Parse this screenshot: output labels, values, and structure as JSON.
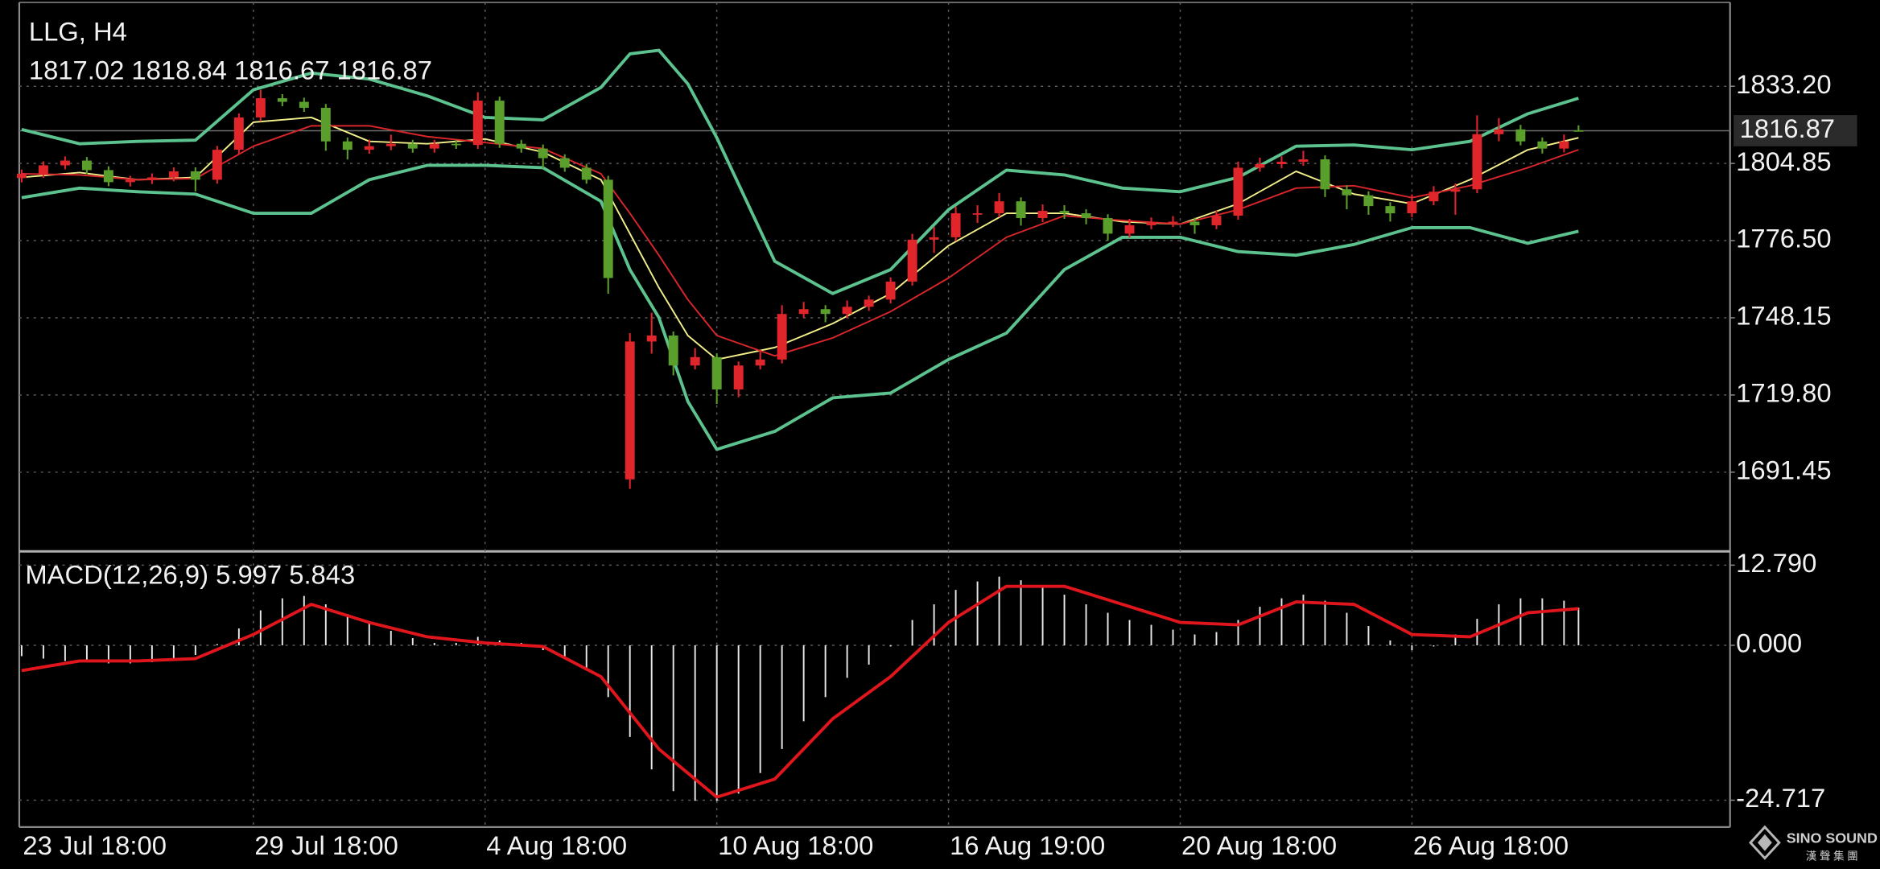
{
  "chart_data": [
    {
      "type": "candlestick",
      "title": "LLG, H4",
      "up_color": "#e0262b",
      "down_color": "#5a9e2c",
      "grid": true,
      "last_price_line": true,
      "xlim": [
        -0.33,
        235.93
      ],
      "ylim": [
        1662.8,
        1864.0
      ],
      "yticks": [
        {
          "value": 1833.2,
          "label": "1833.20"
        },
        1804.85,
        {
          "value": 1776.5,
          "label": "1776.50"
        },
        1748.15,
        {
          "value": 1719.8,
          "label": "1719.80"
        },
        1691.45
      ],
      "xticks": [
        {
          "value": 0,
          "label": "23 Jul 18:00"
        },
        {
          "value": 32,
          "label": "29 Jul 18:00"
        },
        {
          "value": 64,
          "label": "4 Aug 18:00"
        },
        {
          "value": 96,
          "label": "10 Aug 18:00"
        },
        {
          "value": 128,
          "label": "16 Aug 19:00"
        },
        {
          "value": 160,
          "label": "20 Aug 18:00"
        },
        {
          "value": 192,
          "label": "26 Aug 18:00"
        }
      ],
      "x": [
        0,
        3,
        6,
        9,
        12,
        15,
        18,
        21,
        24,
        27,
        30,
        33,
        36,
        39,
        42,
        45,
        48,
        51,
        54,
        57,
        60,
        63,
        66,
        69,
        72,
        75,
        78,
        81,
        84,
        87,
        90,
        93,
        96,
        99,
        102,
        105,
        108,
        111,
        114,
        117,
        120,
        123,
        126,
        129,
        132,
        135,
        138,
        141,
        144,
        147,
        150,
        153,
        156,
        159,
        162,
        165,
        168,
        171,
        174,
        177,
        180,
        183,
        186,
        189,
        192,
        195,
        198,
        201,
        204,
        207,
        210,
        213,
        215
      ],
      "open": [
        1799.5,
        1801.07,
        1804.15,
        1805.91,
        1802.39,
        1797.98,
        1798.86,
        1799.74,
        1801.95,
        1798.86,
        1809.87,
        1821.75,
        1828.8,
        1827.48,
        1825.28,
        1812.95,
        1809.87,
        1811.19,
        1812.07,
        1810.31,
        1812.07,
        1811.63,
        1827.92,
        1812.07,
        1810.31,
        1806.79,
        1803.27,
        1798.86,
        1688.81,
        1739.44,
        1741.64,
        1730.63,
        1733.71,
        1721.83,
        1730.63,
        1732.83,
        1749.56,
        1751.32,
        1749.56,
        1752.2,
        1754.84,
        1761.45,
        1776.85,
        1777.73,
        1786.54,
        1786.54,
        1790.94,
        1784.78,
        1787.42,
        1786.54,
        1784.78,
        1779.06,
        1782.14,
        1783.02,
        1783.46,
        1782.14,
        1785.66,
        1803.27,
        1804.59,
        1805.47,
        1806.35,
        1795.34,
        1793.14,
        1789.18,
        1786.54,
        1790.94,
        1794.46,
        1795.34,
        1815.59,
        1817.35,
        1812.95,
        1810.31,
        1817.02
      ],
      "high": [
        1802.6,
        1805.6,
        1807.4,
        1807.2,
        1803.8,
        1800.3,
        1801.2,
        1803.4,
        1803.4,
        1811.3,
        1823.2,
        1831.9,
        1830.3,
        1829.0,
        1826.7,
        1814.4,
        1813.6,
        1815.4,
        1813.5,
        1813.5,
        1813.5,
        1831.0,
        1829.4,
        1813.5,
        1811.8,
        1808.2,
        1804.7,
        1800.3,
        1742.5,
        1750.0,
        1743.1,
        1737.0,
        1735.1,
        1732.1,
        1736.0,
        1752.8,
        1754.0,
        1752.8,
        1754.5,
        1756.3,
        1763.0,
        1779.0,
        1781.5,
        1789.0,
        1789.5,
        1794.0,
        1792.4,
        1789.8,
        1789.5,
        1788.0,
        1786.2,
        1784.5,
        1785.0,
        1785.5,
        1784.9,
        1787.5,
        1805.5,
        1807.0,
        1807.5,
        1809.5,
        1807.8,
        1796.8,
        1794.6,
        1790.6,
        1793.5,
        1796.5,
        1797.5,
        1822.5,
        1821.5,
        1819.0,
        1814.4,
        1815.5,
        1818.84
      ],
      "low": [
        1797.9,
        1799.6,
        1802.7,
        1800.9,
        1796.5,
        1796.4,
        1797.3,
        1798.3,
        1794.6,
        1797.4,
        1808.4,
        1820.3,
        1825.9,
        1823.8,
        1809.5,
        1806.3,
        1808.4,
        1809.7,
        1808.8,
        1808.8,
        1810.2,
        1810.2,
        1810.6,
        1808.8,
        1803.0,
        1801.8,
        1797.4,
        1757.0,
        1685.29,
        1735.0,
        1727.0,
        1729.2,
        1716.5,
        1719.0,
        1729.2,
        1731.4,
        1748.1,
        1746.5,
        1748.1,
        1750.7,
        1753.4,
        1760.0,
        1772.0,
        1776.3,
        1783.0,
        1785.1,
        1782.0,
        1783.3,
        1784.5,
        1782.5,
        1776.5,
        1777.6,
        1780.7,
        1781.5,
        1779.0,
        1780.7,
        1784.2,
        1801.8,
        1803.1,
        1804.0,
        1792.5,
        1788.0,
        1786.0,
        1783.5,
        1785.1,
        1789.5,
        1786.0,
        1793.9,
        1813.0,
        1811.5,
        1808.5,
        1808.9,
        1816.67
      ],
      "close": [
        1801.07,
        1804.15,
        1805.91,
        1802.39,
        1797.98,
        1798.86,
        1799.74,
        1801.95,
        1798.86,
        1809.87,
        1821.75,
        1828.8,
        1827.48,
        1825.28,
        1812.95,
        1809.87,
        1811.19,
        1812.07,
        1810.31,
        1812.07,
        1811.63,
        1827.92,
        1812.07,
        1810.31,
        1806.79,
        1803.27,
        1798.86,
        1762.77,
        1739.44,
        1741.64,
        1730.63,
        1733.71,
        1721.83,
        1730.63,
        1732.83,
        1749.56,
        1751.32,
        1749.56,
        1752.2,
        1754.84,
        1761.45,
        1776.85,
        1777.73,
        1786.54,
        1786.54,
        1790.94,
        1784.78,
        1787.42,
        1786.54,
        1784.78,
        1779.06,
        1782.14,
        1783.02,
        1783.46,
        1782.14,
        1785.66,
        1803.27,
        1804.59,
        1805.47,
        1806.35,
        1795.34,
        1793.14,
        1789.18,
        1786.54,
        1790.94,
        1794.46,
        1795.34,
        1815.59,
        1817.35,
        1812.95,
        1810.31,
        1812.95,
        1816.87
      ],
      "line_x": [
        0,
        8,
        16,
        24,
        32,
        40,
        48,
        56,
        64,
        72,
        80,
        84,
        88,
        92,
        96,
        104,
        112,
        120,
        128,
        136,
        144,
        152,
        160,
        168,
        176,
        184,
        192,
        200,
        208,
        215
      ],
      "lines": [
        {
          "color": "#5cc28e",
          "width": 2.6,
          "values": [
            1817.35,
            1812.07,
            1812.95,
            1813.39,
            1831.88,
            1838.04,
            1835.84,
            1829.68,
            1821.75,
            1820.87,
            1832.76,
            1845.09,
            1846.41,
            1834.08,
            1814.27,
            1768.93,
            1757.05,
            1765.85,
            1787.86,
            1802.39,
            1800.63,
            1795.78,
            1794.46,
            1799.74,
            1811.19,
            1811.63,
            1809.87,
            1812.95,
            1823.08,
            1828.8
          ]
        },
        {
          "color": "#5cc28e",
          "width": 2.6,
          "values": [
            1792.26,
            1795.78,
            1794.46,
            1793.58,
            1786.54,
            1786.54,
            1798.86,
            1804.15,
            1804.15,
            1803.27,
            1790.94,
            1765.85,
            1748.24,
            1717.43,
            1699.82,
            1706.42,
            1718.75,
            1720.51,
            1732.83,
            1742.52,
            1765.85,
            1777.73,
            1777.73,
            1772.45,
            1771.13,
            1775.09,
            1781.26,
            1781.26,
            1775.53,
            1779.94
          ]
        },
        {
          "color": "#f2ee8a",
          "width": 1.3,
          "values": [
            1799.74,
            1801.51,
            1798.86,
            1799.74,
            1819.99,
            1821.75,
            1812.95,
            1812.07,
            1813.83,
            1808.99,
            1798.86,
            1779.06,
            1759.25,
            1741.64,
            1732.83,
            1737.24,
            1746.04,
            1757.05,
            1774.65,
            1786.54,
            1786.54,
            1783.46,
            1782.58,
            1790.06,
            1801.95,
            1793.58,
            1790.06,
            1798.86,
            1809.87,
            1814.27
          ]
        },
        {
          "color": "#d8262a",
          "width": 1.3,
          "values": [
            1801.07,
            1800.63,
            1798.86,
            1799.3,
            1811.19,
            1818.67,
            1818.67,
            1814.71,
            1812.51,
            1810.31,
            1801.07,
            1786.54,
            1771.13,
            1754.84,
            1741.64,
            1734.15,
            1740.76,
            1750.44,
            1762.77,
            1777.73,
            1785.66,
            1783.9,
            1782.58,
            1787.86,
            1795.78,
            1796.66,
            1792.26,
            1796.66,
            1803.27,
            1809.87
          ]
        }
      ]
    },
    {
      "type": "macd",
      "title": "MACD(12,26,9)",
      "grid": true,
      "ylim": [
        -29.0,
        14.8
      ],
      "yticks": [
        {
          "value": 12.79,
          "label": "12.790"
        },
        {
          "value": 0,
          "label": "0.000"
        },
        -24.717
      ],
      "histogram_color": "#e8e8e8",
      "histogram": [
        -1.73,
        -2.12,
        -2.5,
        -2.69,
        -2.88,
        -2.88,
        -2.69,
        -2.31,
        -1.54,
        0.19,
        2.69,
        5.58,
        7.5,
        7.88,
        6.54,
        5.0,
        3.65,
        2.31,
        1.15,
        0.38,
        0.38,
        1.35,
        0.77,
        0.38,
        -0.77,
        -1.92,
        -4.04,
        -8.27,
        -14.62,
        -19.81,
        -23.27,
        -24.81,
        -24.81,
        -23.65,
        -20.38,
        -16.54,
        -12.12,
        -8.27,
        -5.19,
        -3.08,
        -0.19,
        4.04,
        6.54,
        8.85,
        10.19,
        10.96,
        10.38,
        9.42,
        8.08,
        6.54,
        5.19,
        4.04,
        3.27,
        2.5,
        1.73,
        2.12,
        4.04,
        6.15,
        7.5,
        8.08,
        7.12,
        5.19,
        3.08,
        0.77,
        -0.77,
        -0.19,
        1.73,
        4.23,
        6.54,
        7.5,
        7.5,
        7.12,
        5.997
      ],
      "signal": {
        "color": "#e0161c",
        "x": [
          0,
          8,
          16,
          24,
          32,
          40,
          48,
          56,
          64,
          72,
          80,
          88,
          96,
          104,
          112,
          120,
          128,
          136,
          144,
          152,
          160,
          168,
          176,
          184,
          192,
          200,
          208,
          215
        ],
        "values": [
          -4.04,
          -2.5,
          -2.5,
          -2.12,
          1.73,
          6.54,
          3.65,
          1.35,
          0.38,
          -0.19,
          -5.0,
          -16.54,
          -24.23,
          -21.35,
          -11.73,
          -5.0,
          3.65,
          9.42,
          9.42,
          6.54,
          3.65,
          3.27,
          6.92,
          6.54,
          1.73,
          1.35,
          5.19,
          5.843
        ]
      }
    }
  ],
  "watermark": {
    "name": "SINO SOUND",
    "subtitle": "漢 聲 集 團"
  }
}
